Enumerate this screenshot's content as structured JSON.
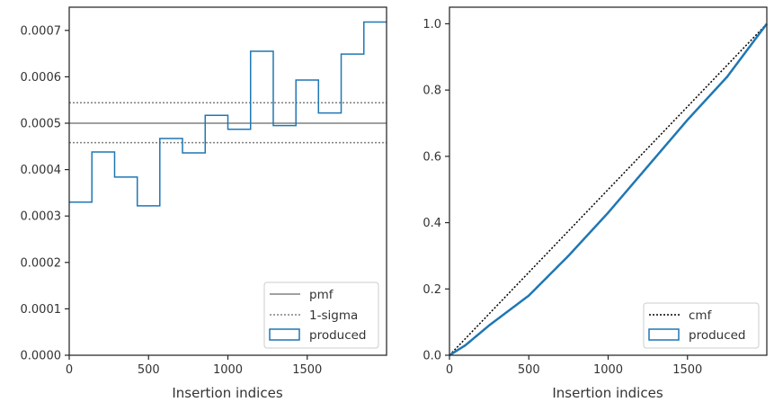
{
  "chart_data": [
    {
      "type": "histogram",
      "xlabel": "Insertion indices",
      "ylabel": "",
      "xlim": [
        0,
        2000
      ],
      "ylim": [
        0,
        0.00075
      ],
      "xticks": [
        0,
        500,
        1000,
        1500
      ],
      "xtick_labels": [
        "0",
        "500",
        "1000",
        "1500"
      ],
      "yticks": [
        0,
        0.0001,
        0.0002,
        0.0003,
        0.0004,
        0.0005,
        0.0006,
        0.0007
      ],
      "ytick_labels": [
        "0.0000",
        "0.0001",
        "0.0002",
        "0.0003",
        "0.0004",
        "0.0005",
        "0.0006",
        "0.0007"
      ],
      "bin_edges": [
        0,
        143,
        286,
        429,
        571,
        714,
        857,
        1000,
        1143,
        1286,
        1429,
        1571,
        1714,
        1857,
        2000
      ],
      "series": [
        {
          "name": "produced",
          "values": [
            0.00033,
            0.000438,
            0.000384,
            0.000322,
            0.000467,
            0.000436,
            0.000517,
            0.000487,
            0.000655,
            0.000495,
            0.000593,
            0.000522,
            0.000649,
            0.000718
          ],
          "color": "#1f77b4"
        }
      ],
      "reference_lines": [
        {
          "name": "pmf",
          "y": 0.0005,
          "style": "solid",
          "color": "#808080"
        },
        {
          "name": "1-sigma",
          "y": 0.000544,
          "style": "dotted",
          "color": "#808080"
        },
        {
          "name": "",
          "y": 0.000458,
          "style": "dotted",
          "color": "#808080"
        }
      ],
      "legend": {
        "position": "lower right",
        "entries": [
          "pmf",
          "1-sigma",
          "produced"
        ]
      }
    },
    {
      "type": "line",
      "xlabel": "Insertion indices",
      "ylabel": "",
      "xlim": [
        0,
        2000
      ],
      "ylim": [
        0,
        1.05
      ],
      "xticks": [
        0,
        500,
        1000,
        1500
      ],
      "xtick_labels": [
        "0",
        "500",
        "1000",
        "1500"
      ],
      "yticks": [
        0,
        0.2,
        0.4,
        0.6,
        0.8,
        1.0
      ],
      "ytick_labels": [
        "0.0",
        "0.2",
        "0.4",
        "0.6",
        "0.8",
        "1.0"
      ],
      "series": [
        {
          "name": "cmf",
          "x": [
            0,
            2000
          ],
          "y": [
            0,
            1.0
          ],
          "style": "dotted",
          "color": "#000000"
        },
        {
          "name": "produced",
          "x": [
            0,
            100,
            250,
            500,
            750,
            1000,
            1250,
            1500,
            1750,
            2000
          ],
          "y": [
            0,
            0.03,
            0.09,
            0.18,
            0.3,
            0.43,
            0.57,
            0.71,
            0.84,
            1.0
          ],
          "style": "solid",
          "color": "#1f77b4"
        }
      ],
      "legend": {
        "position": "lower right",
        "entries": [
          "cmf",
          "produced"
        ]
      }
    }
  ]
}
